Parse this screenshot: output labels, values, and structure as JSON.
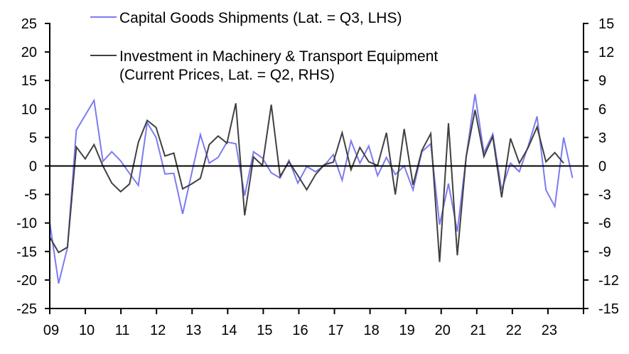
{
  "chart_data": {
    "type": "line",
    "title": "",
    "xlabel": "",
    "ylabel_left": "",
    "ylabel_right": "",
    "x_tick_labels": [
      "09",
      "10",
      "11",
      "12",
      "13",
      "14",
      "15",
      "16",
      "17",
      "18",
      "19",
      "20",
      "21",
      "22",
      "23"
    ],
    "y_left": {
      "ticks": [
        "25",
        "20",
        "15",
        "10",
        "5",
        "0",
        "-5",
        "-10",
        "-15",
        "-20",
        "-25"
      ],
      "range": [
        -25,
        25
      ]
    },
    "y_right": {
      "ticks": [
        "15",
        "12",
        "9",
        "6",
        "3",
        "0",
        "-3",
        "-6",
        "-9",
        "-12",
        "-15"
      ],
      "range": [
        -15,
        15
      ]
    },
    "x_range_years": [
      2009,
      2024
    ],
    "grid": false,
    "zero_line": true,
    "legend_position": "top",
    "series": [
      {
        "name": "Capital Goods Shipments (Lat. = Q3, LHS)",
        "axis": "left",
        "color": "#7b7bf2",
        "frequency": "quarterly",
        "values": [
          -9.9,
          -20.6,
          -14.3,
          6.3,
          8.9,
          11.5,
          0.8,
          2.5,
          0.9,
          -1.3,
          -3.4,
          7.6,
          5.0,
          -1.4,
          -1.3,
          -8.4,
          -1.4,
          5.5,
          0.5,
          1.5,
          4.2,
          3.9,
          -5.2,
          2.5,
          1.4,
          -1.2,
          -2.1,
          1.0,
          -3.0,
          -0.1,
          -1.0,
          0.1,
          2.0,
          -2.5,
          4.4,
          0.5,
          3.5,
          -1.7,
          1.5,
          -1.5,
          0.0,
          -4.2,
          2.5,
          3.9,
          -10.3,
          -3.1,
          -11.5,
          1.6,
          12.6,
          2.3,
          5.6,
          -4.2,
          0.5,
          -1.0,
          3.5,
          8.7,
          -4.2,
          -7.1,
          5.0,
          -2.1
        ]
      },
      {
        "name_line1": "Investment in Machinery & Transport Equipment",
        "name_line2": "(Current Prices, Lat. = Q2, RHS)",
        "axis": "right",
        "color": "#404040",
        "frequency": "quarterly",
        "values": [
          -7.5,
          -9.1,
          -8.55,
          2.0,
          0.75,
          2.25,
          0.0,
          -1.8,
          -2.7,
          -1.9,
          2.5,
          4.8,
          4.05,
          1.05,
          1.35,
          -2.4,
          -1.9,
          -1.3,
          2.25,
          3.15,
          2.4,
          6.6,
          -5.2,
          0.95,
          0.05,
          6.45,
          -1.1,
          0.45,
          -1.0,
          -2.5,
          -0.9,
          0.15,
          0.4,
          3.5,
          -0.4,
          1.95,
          0.45,
          0.05,
          3.5,
          -3.0,
          3.9,
          -2.0,
          1.65,
          3.4,
          -10.1,
          4.5,
          -9.4,
          1.0,
          5.9,
          1.0,
          3.1,
          -3.3,
          2.9,
          0.3,
          1.95,
          4.1,
          0.45,
          1.4,
          0.3
        ]
      }
    ]
  }
}
